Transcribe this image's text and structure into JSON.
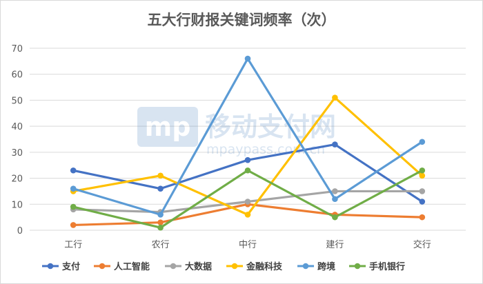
{
  "chart_data": {
    "type": "line",
    "title": "五大行财报关键词频率（次）",
    "xlabel": "",
    "ylabel": "",
    "categories": [
      "工行",
      "农行",
      "中行",
      "建行",
      "交行"
    ],
    "ylim": [
      0,
      70
    ],
    "yticks": [
      0,
      10,
      20,
      30,
      40,
      50,
      60,
      70
    ],
    "grid": "horizontal",
    "legend": "bottom",
    "series": [
      {
        "name": "支付",
        "color": "#4472C4",
        "values": [
          23,
          16,
          27,
          33,
          11
        ]
      },
      {
        "name": "人工智能",
        "color": "#ED7D31",
        "values": [
          2,
          3,
          10,
          6,
          5
        ]
      },
      {
        "name": "大数据",
        "color": "#A5A5A5",
        "values": [
          8,
          7,
          11,
          15,
          15
        ]
      },
      {
        "name": "金融科技",
        "color": "#FFC000",
        "values": [
          15,
          21,
          6,
          51,
          21
        ]
      },
      {
        "name": "跨境",
        "color": "#5B9BD5",
        "values": [
          16,
          6,
          66,
          12,
          34
        ]
      },
      {
        "name": "手机银行",
        "color": "#70AD47",
        "values": [
          9,
          1,
          23,
          5,
          23
        ]
      }
    ]
  },
  "watermark": {
    "logo": "mp",
    "name": "移动支付网",
    "url": "mpaypass.com.cn"
  }
}
